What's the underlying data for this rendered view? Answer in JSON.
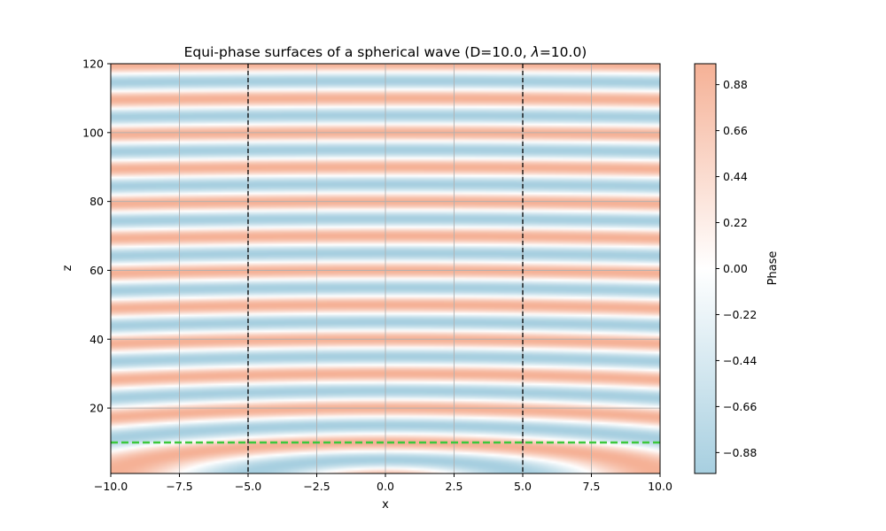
{
  "chart_data": {
    "type": "heatmap",
    "title": "Equi-phase surfaces of a spherical wave (D=10.0, λ=10.0)",
    "title_parts": [
      "Equi-phase surfaces of a spherical wave (D=10.0, ",
      "λ",
      "=10.0)"
    ],
    "xlabel": "x",
    "ylabel": "z",
    "colorbar_label": "Phase",
    "D": 10.0,
    "wavelength": 10.0,
    "xlim": [
      -10,
      10
    ],
    "ylim": [
      1,
      120
    ],
    "x_ticks": [
      -10,
      -7.5,
      -5,
      -2.5,
      0,
      2.5,
      5,
      7.5,
      10
    ],
    "x_tick_labels": [
      "−10.0",
      "−7.5",
      "−5.0",
      "−2.5",
      "0.0",
      "2.5",
      "5.0",
      "7.5",
      "10.0"
    ],
    "y_ticks": [
      20,
      40,
      60,
      80,
      100,
      120
    ],
    "y_tick_labels": [
      "20",
      "40",
      "60",
      "80",
      "100",
      "120"
    ],
    "colorbar_range": [
      -0.98,
      0.98
    ],
    "colorbar_ticks": [
      -0.88,
      -0.66,
      -0.44,
      -0.22,
      0.0,
      0.22,
      0.44,
      0.66,
      0.88
    ],
    "colorbar_tick_labels": [
      "−0.88",
      "−0.66",
      "−0.44",
      "−0.22",
      "0.00",
      "0.22",
      "0.44",
      "0.66",
      "0.88"
    ],
    "colormap": {
      "low": "#a7cfe0",
      "mid": "#ffffff",
      "high": "#f5b196"
    },
    "phase_function": "cos(2*pi*sqrt(x^2+z^2)/lambda)",
    "aperture_lines": {
      "x": [
        -5,
        5
      ],
      "style": "dashed",
      "color": "#000000"
    },
    "reference_line": {
      "z": 10,
      "style": "dashed",
      "color": "#3cc83c"
    },
    "grid": true
  }
}
